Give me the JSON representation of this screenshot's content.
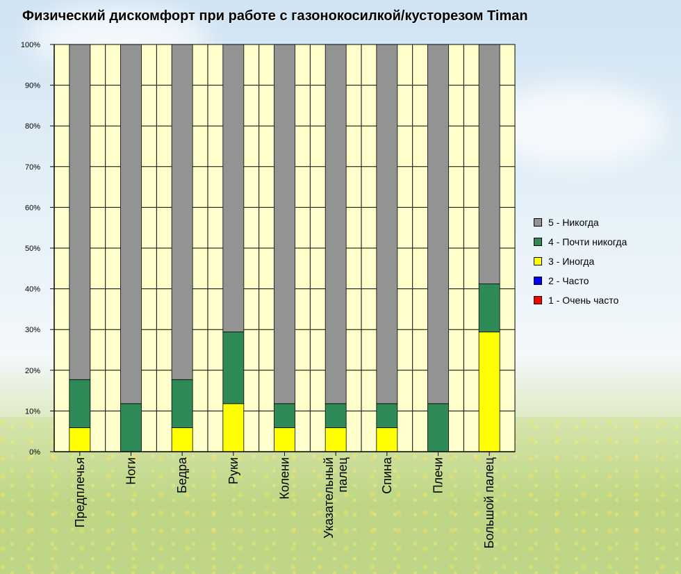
{
  "title": "Физический дискомфорт при работе с газонокосилкой/кусторезом Timan",
  "colors": {
    "plot_bg": "#ffffcc",
    "never": "#939393",
    "almost_never": "#2e8b57",
    "sometimes": "#ffff00",
    "often": "#0000ff",
    "very_often": "#ff0000"
  },
  "chart_data": {
    "type": "bar",
    "stacked": true,
    "percent": true,
    "ylim": [
      0,
      100
    ],
    "y_ticks": [
      "0%",
      "10%",
      "20%",
      "30%",
      "40%",
      "50%",
      "60%",
      "70%",
      "80%",
      "90%",
      "100%"
    ],
    "grid": true,
    "legend_position": "right",
    "categories": [
      "Предплечья",
      "Ноги",
      "Бедра",
      "Руки",
      "Колени",
      "Указательный палец",
      "Спина",
      "Плечи",
      "Большой палец"
    ],
    "series": [
      {
        "name": "1 - Очень часто",
        "color_key": "very_often",
        "values": [
          0,
          0,
          0,
          0,
          0,
          0,
          0,
          0,
          0
        ]
      },
      {
        "name": "2 - Часто",
        "color_key": "often",
        "values": [
          0,
          0,
          0,
          0,
          0,
          0,
          0,
          0,
          0
        ]
      },
      {
        "name": "3 - Иногда",
        "color_key": "sometimes",
        "values": [
          5.9,
          0,
          5.9,
          11.8,
          5.9,
          5.9,
          5.9,
          0,
          29.4
        ]
      },
      {
        "name": "4 - Почти никогда",
        "color_key": "almost_never",
        "values": [
          11.8,
          11.8,
          11.8,
          17.6,
          5.9,
          5.9,
          5.9,
          11.8,
          11.8
        ]
      },
      {
        "name": "5 - Никогда",
        "color_key": "never",
        "values": [
          82.3,
          88.2,
          82.3,
          70.6,
          88.2,
          88.2,
          88.2,
          88.2,
          58.8
        ]
      }
    ],
    "legend": [
      "5 - Никогда",
      "4 - Почти никогда",
      "3 - Иногда",
      "2 - Часто",
      "1 - Очень часто"
    ]
  }
}
